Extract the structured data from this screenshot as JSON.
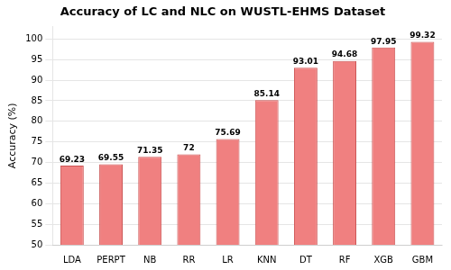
{
  "chart_data": {
    "type": "bar",
    "title": "Accuracy of LC and NLC on WUSTL-EHMS Dataset",
    "categories": [
      "LDA",
      "PERPT",
      "NB",
      "RR",
      "LR",
      "KNN",
      "DT",
      "RF",
      "XGB",
      "GBM"
    ],
    "values": [
      69.23,
      69.55,
      71.35,
      72,
      75.69,
      85.14,
      93.01,
      94.68,
      97.95,
      99.32
    ],
    "color": "#F08080",
    "ylabel": "Accuracy (%)",
    "ylim": [
      50,
      103
    ],
    "yticks": [
      50,
      55,
      60,
      65,
      70,
      75,
      80,
      85,
      90,
      95,
      100
    ],
    "grid": true,
    "data_labels": true
  }
}
